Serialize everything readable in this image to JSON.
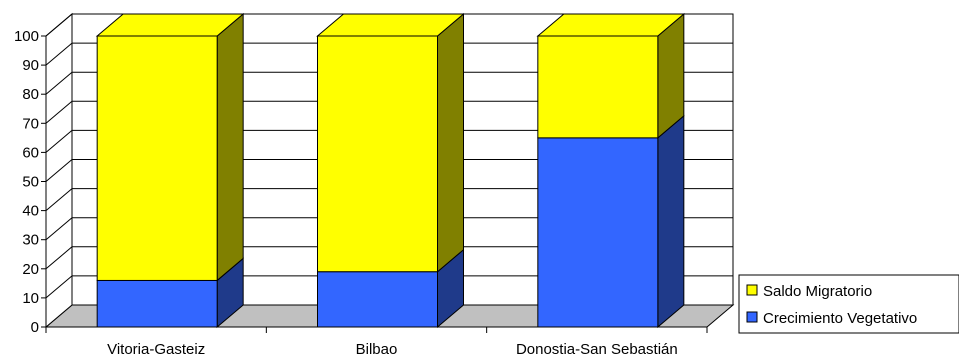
{
  "chart_data": {
    "type": "bar",
    "stacked": true,
    "three_d": true,
    "categories": [
      "Vitoria-Gasteiz",
      "Bilbao",
      "Donostia-San Sebastián"
    ],
    "series": [
      {
        "name": "Crecimiento Vegetativo",
        "values": [
          16,
          19,
          65
        ],
        "color": "#3366ff",
        "side_color": "#1f3a8a"
      },
      {
        "name": "Saldo Migratorio",
        "values": [
          84,
          81,
          35
        ],
        "color": "#ffff00",
        "side_color": "#808000"
      }
    ],
    "yticks": [
      "0",
      "10",
      "20",
      "30",
      "40",
      "50",
      "60",
      "70",
      "80",
      "90",
      "100"
    ],
    "ylim": [
      0,
      100
    ],
    "grid": true,
    "legend_position": "right",
    "floor_color": "#c0c0c0",
    "title": "",
    "xlabel": "",
    "ylabel": ""
  }
}
